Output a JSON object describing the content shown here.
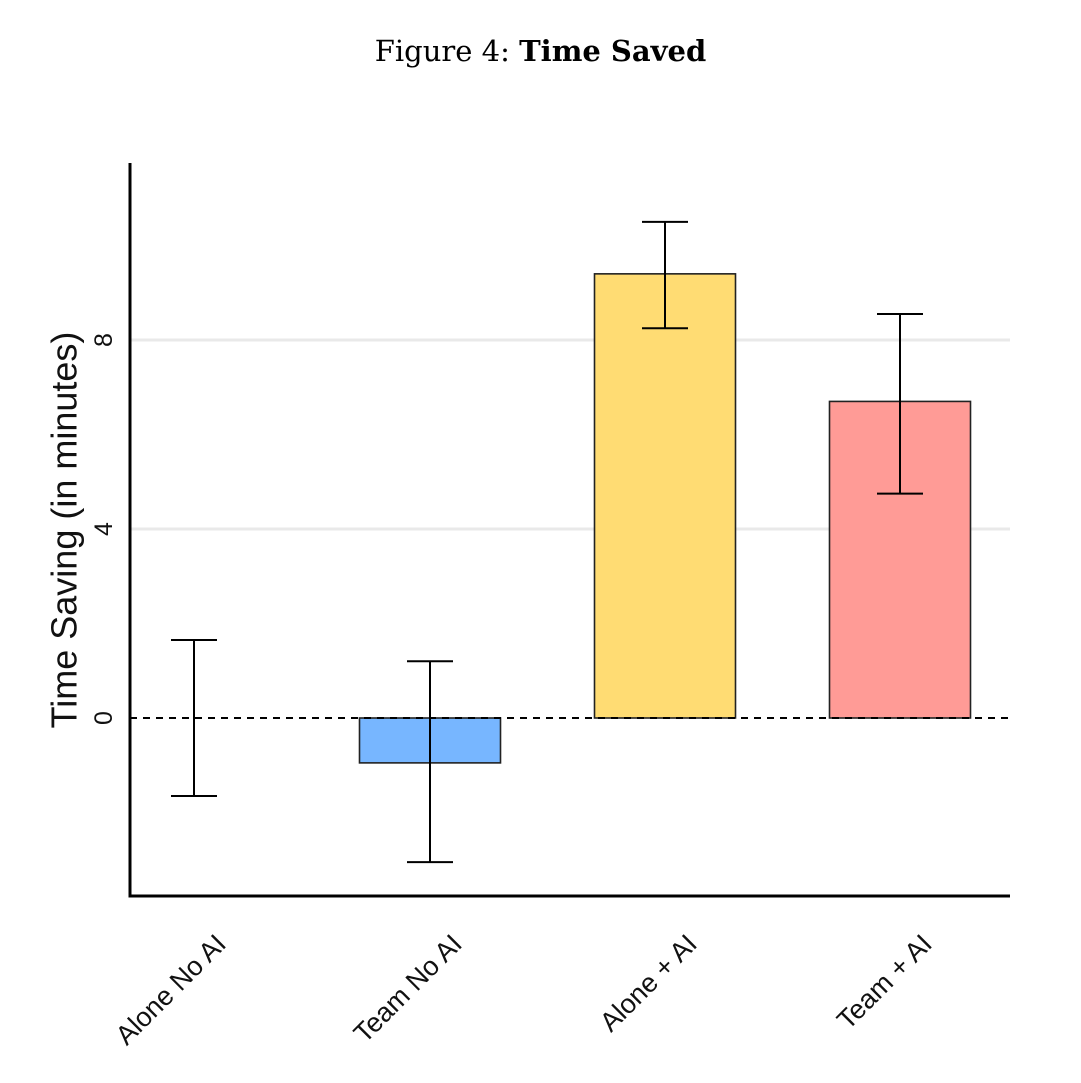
{
  "caption": {
    "prefix": "Figure 4:",
    "title": "Time Saved"
  },
  "chart_data": {
    "type": "bar",
    "title": "Time Saved",
    "xlabel": "",
    "ylabel": "Time Saving (in minutes)",
    "ylim": [
      -3.8,
      11.7
    ],
    "yticks": [
      0,
      4,
      8
    ],
    "grid": "horizontal",
    "reference_line": {
      "y": 0,
      "style": "dashed"
    },
    "categories": [
      "Alone No AI",
      "Team No AI",
      "Alone + AI",
      "Team + AI"
    ],
    "values": [
      0,
      -0.95,
      9.4,
      6.7
    ],
    "error_low": [
      -1.65,
      -3.05,
      8.25,
      4.75
    ],
    "error_high": [
      1.65,
      1.2,
      10.5,
      8.55
    ],
    "colors": [
      "#ffffff",
      "#77b6ff",
      "#ffdc73",
      "#ff9b96"
    ]
  }
}
